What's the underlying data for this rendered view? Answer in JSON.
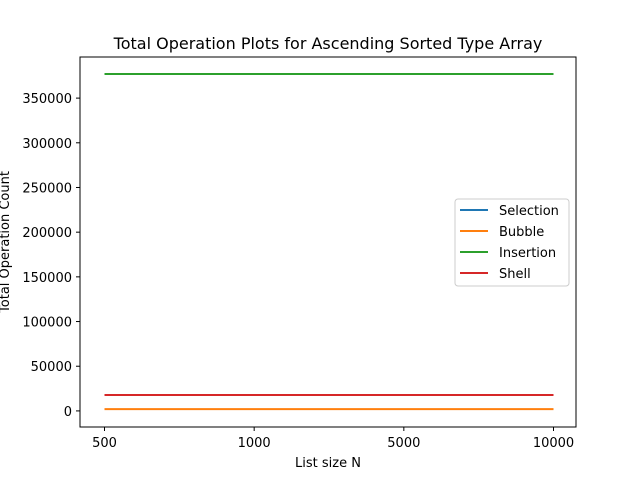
{
  "chart_data": {
    "type": "line",
    "title": "Total Operation Plots for Ascending Sorted Type Array",
    "xlabel": "List size N",
    "ylabel": "Total Operation Count",
    "categories": [
      "500",
      "1000",
      "5000",
      "10000"
    ],
    "y_ticks": [
      0,
      50000,
      100000,
      150000,
      200000,
      250000,
      300000,
      350000
    ],
    "ylim": [
      -18000,
      396000
    ],
    "grid": false,
    "legend_position": "center-right",
    "series": [
      {
        "name": "Selection",
        "color": "#1f77b4",
        "values": [
          377000,
          377000,
          377000,
          377000
        ]
      },
      {
        "name": "Bubble",
        "color": "#ff7f0e",
        "values": [
          2000,
          2000,
          2000,
          2000
        ]
      },
      {
        "name": "Insertion",
        "color": "#2ca02c",
        "values": [
          377000,
          377000,
          377000,
          377000
        ]
      },
      {
        "name": "Shell",
        "color": "#d62728",
        "values": [
          17800,
          17800,
          17800,
          17800
        ]
      }
    ]
  }
}
